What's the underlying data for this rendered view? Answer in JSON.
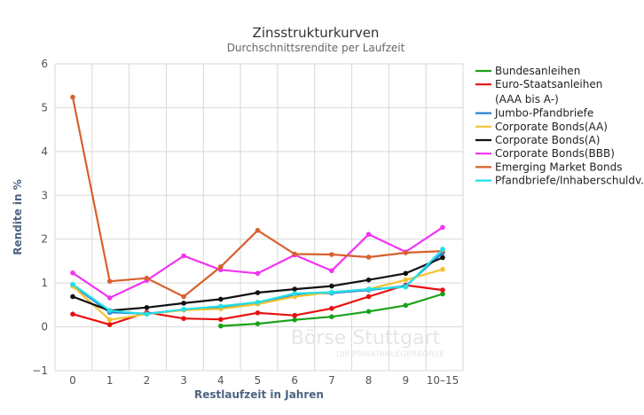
{
  "chart_data": {
    "type": "line",
    "title": "Zinsstrukturkurven",
    "subtitle": "Durchschnittsrendite per Laufzeit",
    "xlabel": "Restlaufzeit in Jahren",
    "ylabel": "Rendite in %",
    "categories": [
      "0",
      "1",
      "2",
      "3",
      "4",
      "5",
      "6",
      "7",
      "8",
      "9",
      "10–15"
    ],
    "ylim": [
      -1,
      6
    ],
    "yticks": [
      -1,
      0,
      1,
      2,
      3,
      4,
      5,
      6
    ],
    "grid": true,
    "legend_position": "right",
    "watermark": {
      "brand": "Börse Stuttgart",
      "tagline": "DIE PRIVATANLEGERBÖRSE"
    },
    "series": [
      {
        "name": "Bundesanleihen",
        "color": "#1aa31a",
        "values": [
          null,
          null,
          null,
          null,
          0.02,
          0.07,
          0.16,
          0.23,
          0.35,
          0.49,
          0.75
        ]
      },
      {
        "name": "Euro-Staatsanleihen (AAA bis A-)",
        "color": "#e81010",
        "values": [
          0.29,
          0.05,
          0.33,
          0.19,
          0.17,
          0.32,
          0.26,
          0.42,
          0.69,
          0.95,
          0.84
        ]
      },
      {
        "name": "Jumbo-Pfandbriefe",
        "color": "#2a7fd4",
        "values": [
          0.95,
          0.33,
          0.3,
          0.39,
          0.45,
          0.53,
          0.74,
          0.77,
          0.84,
          0.93,
          1.69
        ]
      },
      {
        "name": "Corporate Bonds(AA)",
        "color": "#f2c232",
        "values": [
          0.93,
          0.16,
          0.29,
          0.38,
          0.41,
          0.52,
          0.69,
          0.79,
          0.86,
          1.07,
          1.31
        ]
      },
      {
        "name": "Corporate Bonds(A)",
        "color": "#111111",
        "values": [
          0.69,
          0.37,
          0.44,
          0.54,
          0.63,
          0.78,
          0.86,
          0.93,
          1.07,
          1.22,
          1.58
        ]
      },
      {
        "name": "Corporate Bonds(BBB)",
        "color": "#f233f2",
        "values": [
          1.23,
          0.66,
          1.06,
          1.62,
          1.3,
          1.22,
          1.64,
          1.28,
          2.11,
          1.71,
          2.27
        ]
      },
      {
        "name": "Emerging Market Bonds",
        "color": "#d9602e",
        "values": [
          5.24,
          1.04,
          1.11,
          0.69,
          1.37,
          2.2,
          1.66,
          1.65,
          1.59,
          1.69,
          1.73
        ]
      },
      {
        "name": "Pfandbriefe/Inhaberschuldv.",
        "color": "#22e0e8",
        "values": [
          0.97,
          0.37,
          0.29,
          0.4,
          0.47,
          0.56,
          0.76,
          0.79,
          0.86,
          0.91,
          1.77
        ]
      }
    ],
    "legend_display": [
      [
        "Bundesanleihen"
      ],
      [
        "Euro-Staatsanleihen",
        "(AAA bis A-)"
      ],
      [
        "Jumbo-Pfandbriefe"
      ],
      [
        "Corporate Bonds(AA)"
      ],
      [
        "Corporate Bonds(A)"
      ],
      [
        "Corporate Bonds(BBB)"
      ],
      [
        "Emerging Market Bonds"
      ],
      [
        "Pfandbriefe/Inhaberschuldv."
      ]
    ]
  }
}
